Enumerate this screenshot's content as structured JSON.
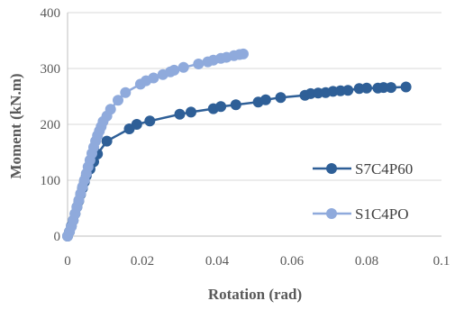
{
  "chart_data": {
    "type": "scatter",
    "xlabel": "Rotation (rad)",
    "ylabel": "Moment  (kN.m)",
    "xlim": [
      0,
      0.1
    ],
    "ylim": [
      0,
      400
    ],
    "x_ticks": [
      "0",
      "0.02",
      "0.04",
      "0.06",
      "0.08",
      "0.1"
    ],
    "y_ticks": [
      "0",
      "100",
      "200",
      "300",
      "400"
    ],
    "grid": "horizontal",
    "legend_position": "right",
    "series": [
      {
        "name": "S7C4P60",
        "color": "#2e5f97",
        "points": [
          [
            0,
            0
          ],
          [
            0.0005,
            8
          ],
          [
            0.001,
            18
          ],
          [
            0.0015,
            28
          ],
          [
            0.002,
            40
          ],
          [
            0.0025,
            52
          ],
          [
            0.003,
            63
          ],
          [
            0.0035,
            75
          ],
          [
            0.004,
            86
          ],
          [
            0.0045,
            97
          ],
          [
            0.005,
            108
          ],
          [
            0.006,
            120
          ],
          [
            0.007,
            133
          ],
          [
            0.008,
            147
          ],
          [
            0.0105,
            170
          ],
          [
            0.0165,
            192
          ],
          [
            0.0185,
            200
          ],
          [
            0.022,
            206
          ],
          [
            0.03,
            218
          ],
          [
            0.033,
            222
          ],
          [
            0.039,
            228
          ],
          [
            0.041,
            232
          ],
          [
            0.045,
            235
          ],
          [
            0.051,
            240
          ],
          [
            0.053,
            244
          ],
          [
            0.057,
            248
          ],
          [
            0.0635,
            252
          ],
          [
            0.065,
            255
          ],
          [
            0.067,
            256
          ],
          [
            0.069,
            257
          ],
          [
            0.071,
            259
          ],
          [
            0.073,
            260
          ],
          [
            0.075,
            261
          ],
          [
            0.078,
            264
          ],
          [
            0.08,
            265
          ],
          [
            0.083,
            265
          ],
          [
            0.0845,
            266
          ],
          [
            0.0865,
            266
          ],
          [
            0.0905,
            267
          ]
        ]
      },
      {
        "name": "S1C4PO",
        "color": "#8faadc",
        "points": [
          [
            0,
            0
          ],
          [
            0.0005,
            8
          ],
          [
            0.001,
            17
          ],
          [
            0.0015,
            28
          ],
          [
            0.002,
            40
          ],
          [
            0.0025,
            52
          ],
          [
            0.003,
            64
          ],
          [
            0.0035,
            76
          ],
          [
            0.004,
            88
          ],
          [
            0.0045,
            100
          ],
          [
            0.005,
            112
          ],
          [
            0.0055,
            124
          ],
          [
            0.006,
            136
          ],
          [
            0.0065,
            148
          ],
          [
            0.007,
            159
          ],
          [
            0.0075,
            170
          ],
          [
            0.008,
            180
          ],
          [
            0.0085,
            188
          ],
          [
            0.009,
            196
          ],
          [
            0.0095,
            205
          ],
          [
            0.0105,
            215
          ],
          [
            0.0115,
            227
          ],
          [
            0.0135,
            243
          ],
          [
            0.0155,
            257
          ],
          [
            0.0195,
            272
          ],
          [
            0.021,
            278
          ],
          [
            0.023,
            283
          ],
          [
            0.0255,
            289
          ],
          [
            0.0275,
            294
          ],
          [
            0.0285,
            297
          ],
          [
            0.031,
            302
          ],
          [
            0.035,
            308
          ],
          [
            0.0375,
            312
          ],
          [
            0.039,
            315
          ],
          [
            0.041,
            318
          ],
          [
            0.0425,
            320
          ],
          [
            0.0445,
            323
          ],
          [
            0.046,
            325
          ],
          [
            0.047,
            326
          ]
        ]
      }
    ]
  }
}
